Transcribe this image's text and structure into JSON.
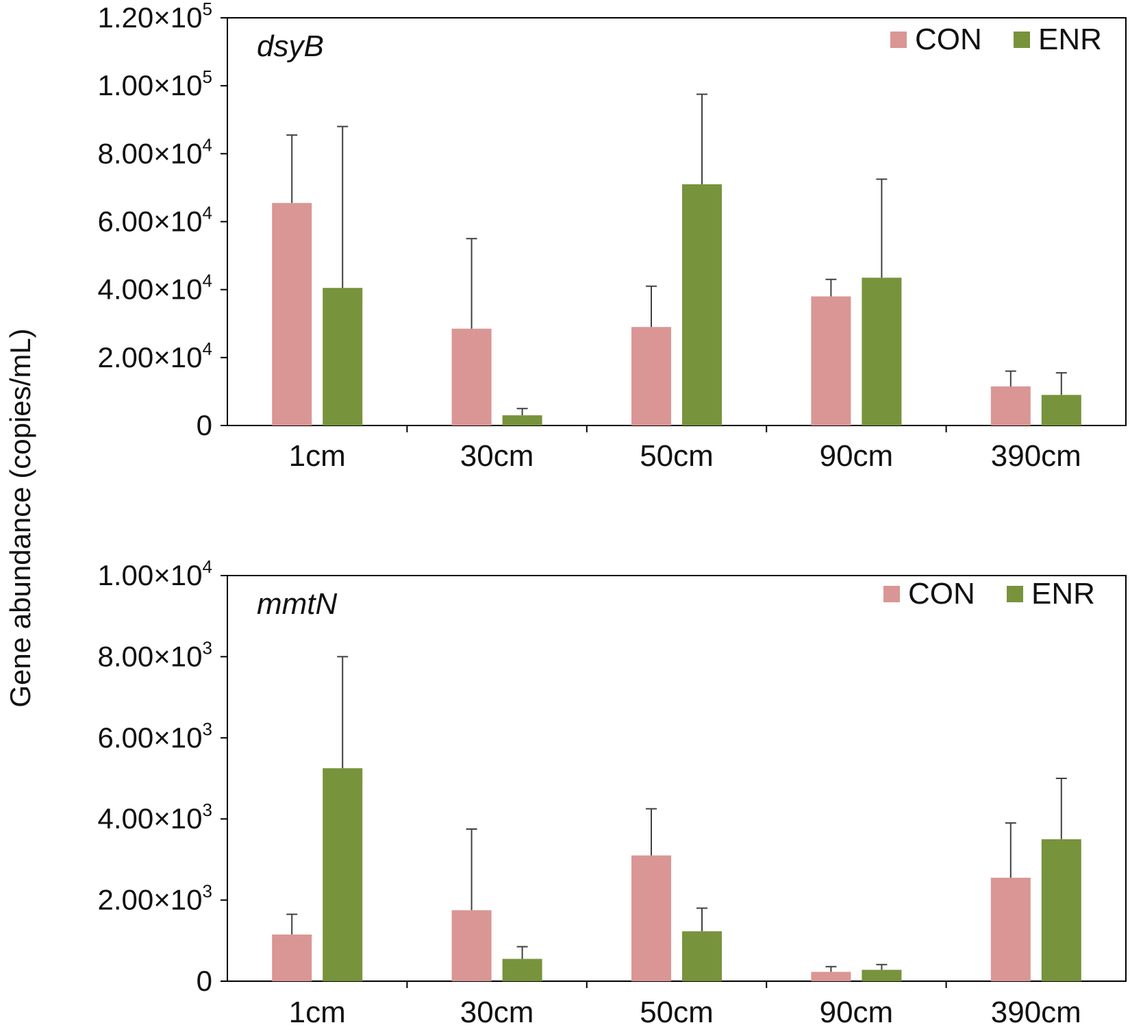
{
  "y_axis_label": "Gene abundance (copies/mL)",
  "colors": {
    "CON": "#d99694",
    "ENR": "#77933c",
    "error_bar": "#404040",
    "axis": "#000000"
  },
  "chart_data": [
    {
      "type": "bar",
      "title": "dsyB",
      "xlabel": "",
      "ylabel": "Gene abundance (copies/mL)",
      "categories": [
        "1cm",
        "30cm",
        "50cm",
        "90cm",
        "390cm"
      ],
      "series": [
        {
          "name": "CON",
          "values": [
            65500,
            28500,
            29000,
            38000,
            11500
          ],
          "errors": [
            20000,
            26500,
            12000,
            5000,
            4500
          ]
        },
        {
          "name": "ENR",
          "values": [
            40500,
            3000,
            71000,
            43500,
            9000
          ],
          "errors": [
            47500,
            2000,
            26500,
            29000,
            6500
          ]
        }
      ],
      "ylim": [
        0,
        120000
      ],
      "yticks": [
        {
          "value": 0,
          "mantissa": "0",
          "exponent": ""
        },
        {
          "value": 20000,
          "mantissa": "2.00×10",
          "exponent": "4"
        },
        {
          "value": 40000,
          "mantissa": "4.00×10",
          "exponent": "4"
        },
        {
          "value": 60000,
          "mantissa": "6.00×10",
          "exponent": "4"
        },
        {
          "value": 80000,
          "mantissa": "8.00×10",
          "exponent": "4"
        },
        {
          "value": 100000,
          "mantissa": "1.00×10",
          "exponent": "5"
        },
        {
          "value": 120000,
          "mantissa": "1.20×10",
          "exponent": "5"
        }
      ],
      "legend": "top-right",
      "grid": false
    },
    {
      "type": "bar",
      "title": "mmtN",
      "xlabel": "",
      "ylabel": "Gene abundance (copies/mL)",
      "categories": [
        "1cm",
        "30cm",
        "50cm",
        "90cm",
        "390cm"
      ],
      "series": [
        {
          "name": "CON",
          "values": [
            1150,
            1750,
            3100,
            230,
            2550
          ],
          "errors": [
            500,
            2000,
            1150,
            130,
            1350
          ]
        },
        {
          "name": "ENR",
          "values": [
            5250,
            550,
            1230,
            280,
            3500
          ],
          "errors": [
            2750,
            300,
            570,
            130,
            1500
          ]
        }
      ],
      "ylim": [
        0,
        10000
      ],
      "yticks": [
        {
          "value": 0,
          "mantissa": "0",
          "exponent": ""
        },
        {
          "value": 2000,
          "mantissa": "2.00×10",
          "exponent": "3"
        },
        {
          "value": 4000,
          "mantissa": "4.00×10",
          "exponent": "3"
        },
        {
          "value": 6000,
          "mantissa": "6.00×10",
          "exponent": "3"
        },
        {
          "value": 8000,
          "mantissa": "8.00×10",
          "exponent": "3"
        },
        {
          "value": 10000,
          "mantissa": "1.00×10",
          "exponent": "4"
        }
      ],
      "legend": "top-right",
      "grid": false
    }
  ]
}
